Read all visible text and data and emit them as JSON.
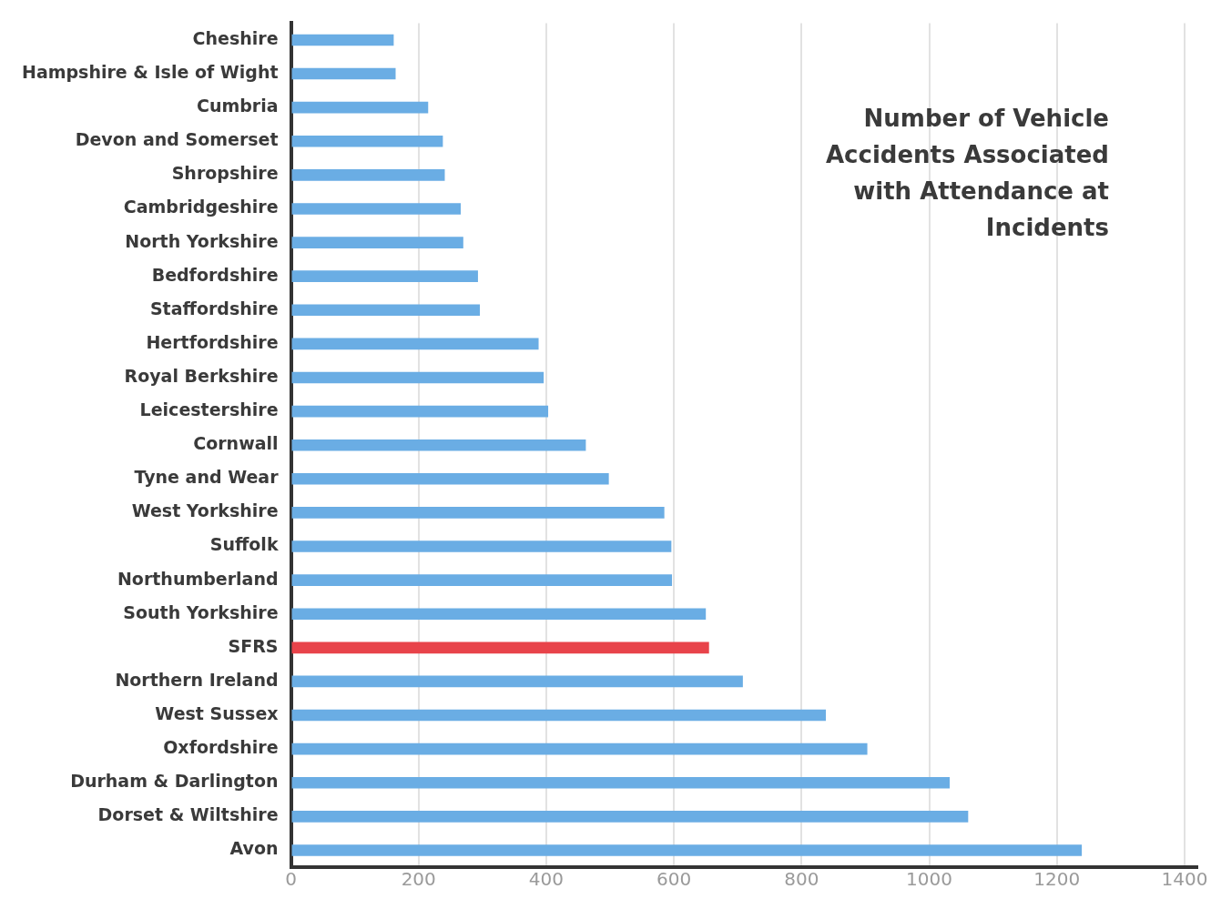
{
  "chart_data": {
    "type": "bar",
    "orientation": "horizontal",
    "title": "Number of Vehicle Accidents Associated with Attendance at Incidents",
    "categories": [
      "Cheshire",
      "Hampshire & Isle of Wight",
      "Cumbria",
      "Devon and Somerset",
      "Shropshire",
      "Cambridgeshire",
      "North Yorkshire",
      "Bedfordshire",
      "Staffordshire",
      "Hertfordshire",
      "Royal Berkshire",
      "Leicestershire",
      "Cornwall",
      "Tyne and Wear",
      "West Yorkshire",
      "Suffolk",
      "Northumberland",
      "South Yorkshire",
      "SFRS",
      "Northern Ireland",
      "West Sussex",
      "Oxfordshire",
      "Durham & Darlington",
      "Dorset & Wiltshire",
      "Avon"
    ],
    "values": [
      161,
      164,
      215,
      238,
      241,
      266,
      270,
      293,
      296,
      388,
      396,
      403,
      462,
      498,
      585,
      596,
      597,
      650,
      655,
      708,
      838,
      903,
      1032,
      1061,
      1239
    ],
    "colors": [
      "#6aade4",
      "#6aade4",
      "#6aade4",
      "#6aade4",
      "#6aade4",
      "#6aade4",
      "#6aade4",
      "#6aade4",
      "#6aade4",
      "#6aade4",
      "#6aade4",
      "#6aade4",
      "#6aade4",
      "#6aade4",
      "#6aade4",
      "#6aade4",
      "#6aade4",
      "#6aade4",
      "#e8434a",
      "#6aade4",
      "#6aade4",
      "#6aade4",
      "#6aade4",
      "#6aade4",
      "#6aade4"
    ],
    "xlim": [
      0,
      1420
    ],
    "xticks": [
      0,
      200,
      400,
      600,
      800,
      1000,
      1200,
      1400
    ],
    "grid": "x",
    "legend": false
  }
}
